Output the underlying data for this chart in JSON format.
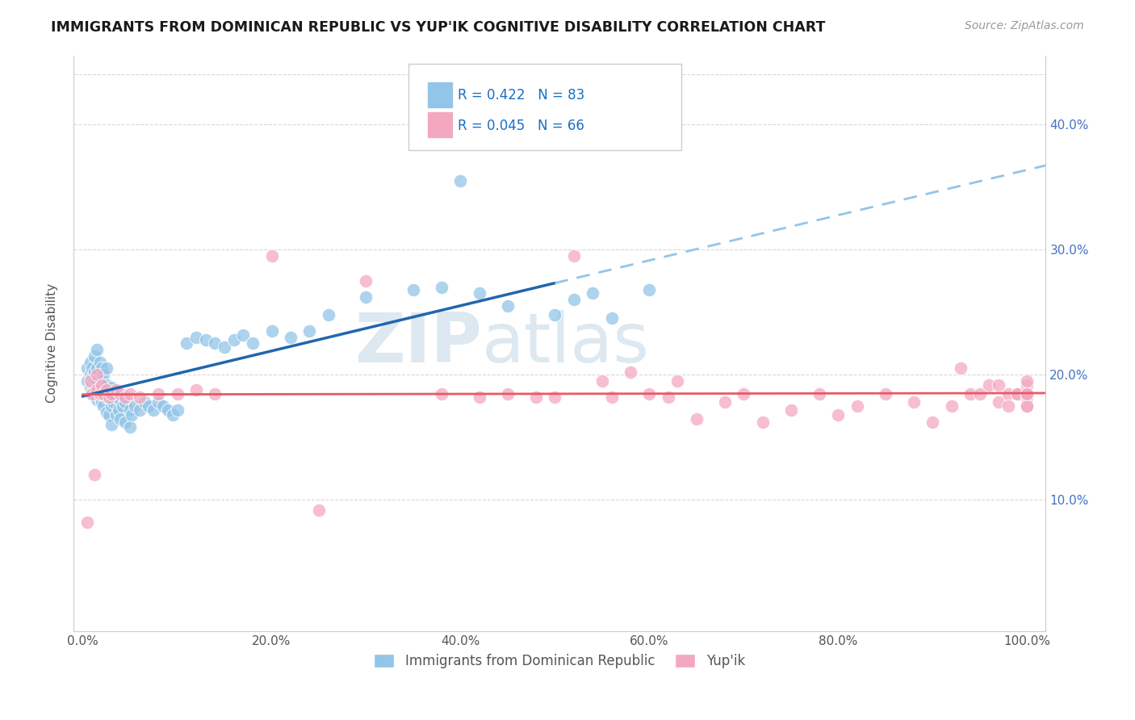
{
  "title": "IMMIGRANTS FROM DOMINICAN REPUBLIC VS YUP'IK COGNITIVE DISABILITY CORRELATION CHART",
  "source": "Source: ZipAtlas.com",
  "ylabel": "Cognitive Disability",
  "legend_label1": "Immigrants from Dominican Republic",
  "legend_label2": "Yup'ik",
  "r1": 0.422,
  "n1": 83,
  "r2": 0.045,
  "n2": 66,
  "color1": "#92c5e8",
  "color2": "#f4a8c0",
  "line1_color": "#2166ac",
  "line2_color": "#e8596a",
  "trendline1_dashed_color": "#92c5e8",
  "background_color": "#ffffff",
  "grid_color": "#d8d8d8",
  "xlim": [
    -0.01,
    1.02
  ],
  "ylim": [
    -0.005,
    0.455
  ],
  "xtick_labels": [
    "0.0%",
    "20.0%",
    "40.0%",
    "60.0%",
    "80.0%",
    "100.0%"
  ],
  "xtick_vals": [
    0,
    0.2,
    0.4,
    0.6,
    0.8,
    1.0
  ],
  "ytick_vals": [
    0.1,
    0.2,
    0.3,
    0.4
  ],
  "ytick_labels": [
    "10.0%",
    "20.0%",
    "30.0%",
    "40.0%"
  ],
  "blue_x": [
    0.005,
    0.005,
    0.008,
    0.008,
    0.008,
    0.01,
    0.01,
    0.01,
    0.01,
    0.012,
    0.012,
    0.012,
    0.012,
    0.012,
    0.015,
    0.015,
    0.015,
    0.015,
    0.015,
    0.018,
    0.018,
    0.018,
    0.02,
    0.02,
    0.02,
    0.02,
    0.022,
    0.022,
    0.022,
    0.025,
    0.025,
    0.025,
    0.025,
    0.028,
    0.028,
    0.03,
    0.03,
    0.03,
    0.032,
    0.035,
    0.035,
    0.038,
    0.04,
    0.04,
    0.042,
    0.045,
    0.045,
    0.05,
    0.05,
    0.052,
    0.055,
    0.06,
    0.065,
    0.07,
    0.075,
    0.08,
    0.085,
    0.09,
    0.095,
    0.1,
    0.11,
    0.12,
    0.13,
    0.14,
    0.15,
    0.16,
    0.17,
    0.18,
    0.2,
    0.22,
    0.24,
    0.26,
    0.3,
    0.35,
    0.38,
    0.4,
    0.42,
    0.45,
    0.5,
    0.52,
    0.54,
    0.56,
    0.6
  ],
  "blue_y": [
    0.195,
    0.205,
    0.19,
    0.2,
    0.21,
    0.185,
    0.192,
    0.198,
    0.205,
    0.185,
    0.19,
    0.196,
    0.202,
    0.215,
    0.18,
    0.188,
    0.195,
    0.205,
    0.22,
    0.182,
    0.192,
    0.21,
    0.178,
    0.185,
    0.195,
    0.205,
    0.175,
    0.188,
    0.2,
    0.17,
    0.182,
    0.192,
    0.205,
    0.168,
    0.182,
    0.16,
    0.175,
    0.19,
    0.178,
    0.168,
    0.182,
    0.172,
    0.165,
    0.18,
    0.175,
    0.162,
    0.178,
    0.158,
    0.172,
    0.168,
    0.175,
    0.172,
    0.178,
    0.175,
    0.172,
    0.178,
    0.175,
    0.172,
    0.168,
    0.172,
    0.225,
    0.23,
    0.228,
    0.225,
    0.222,
    0.228,
    0.232,
    0.225,
    0.235,
    0.23,
    0.235,
    0.248,
    0.262,
    0.268,
    0.27,
    0.355,
    0.265,
    0.255,
    0.248,
    0.26,
    0.265,
    0.245,
    0.268
  ],
  "pink_x": [
    0.005,
    0.008,
    0.01,
    0.012,
    0.015,
    0.015,
    0.018,
    0.02,
    0.022,
    0.025,
    0.028,
    0.03,
    0.035,
    0.04,
    0.045,
    0.05,
    0.06,
    0.08,
    0.1,
    0.12,
    0.14,
    0.2,
    0.25,
    0.3,
    0.38,
    0.42,
    0.45,
    0.48,
    0.5,
    0.52,
    0.55,
    0.56,
    0.58,
    0.6,
    0.62,
    0.63,
    0.65,
    0.68,
    0.7,
    0.72,
    0.75,
    0.78,
    0.8,
    0.82,
    0.85,
    0.88,
    0.9,
    0.92,
    0.93,
    0.94,
    0.95,
    0.96,
    0.97,
    0.97,
    0.98,
    0.98,
    0.99,
    0.99,
    1.0,
    1.0,
    1.0,
    1.0,
    1.0,
    1.0,
    1.0,
    1.0
  ],
  "pink_y": [
    0.082,
    0.195,
    0.185,
    0.12,
    0.188,
    0.2,
    0.185,
    0.192,
    0.185,
    0.188,
    0.182,
    0.185,
    0.188,
    0.185,
    0.182,
    0.185,
    0.182,
    0.185,
    0.185,
    0.188,
    0.185,
    0.295,
    0.092,
    0.275,
    0.185,
    0.182,
    0.185,
    0.182,
    0.182,
    0.295,
    0.195,
    0.182,
    0.202,
    0.185,
    0.182,
    0.195,
    0.165,
    0.178,
    0.185,
    0.162,
    0.172,
    0.185,
    0.168,
    0.175,
    0.185,
    0.178,
    0.162,
    0.175,
    0.205,
    0.185,
    0.185,
    0.192,
    0.178,
    0.192,
    0.185,
    0.175,
    0.185,
    0.185,
    0.185,
    0.175,
    0.182,
    0.192,
    0.185,
    0.175,
    0.195,
    0.185
  ]
}
